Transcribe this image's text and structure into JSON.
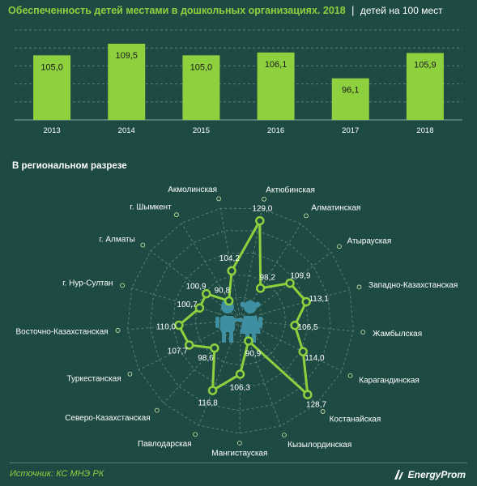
{
  "header": {
    "title": "Обеспеченность детей местами в дошкольных организациях. 2018",
    "separator": "|",
    "unit": "детей  на 100 мест"
  },
  "regional": {
    "heading": "В региональном  разрезе"
  },
  "footer": {
    "source": "Источник: КС МНЭ РК",
    "logo_text": "EnergyProm"
  },
  "colors": {
    "background": "#1e4a44",
    "accent": "#8ed13e",
    "grid": "#5b7f77"
  },
  "icons": {
    "center": "children-icon",
    "logo": "energyprom-logo-icon"
  },
  "chart_data": [
    {
      "type": "bar",
      "categories": [
        "2013",
        "2014",
        "2015",
        "2016",
        "2017",
        "2018"
      ],
      "values": [
        105.0,
        109.5,
        105.0,
        106.1,
        96.1,
        105.9
      ],
      "value_labels": [
        "105,0",
        "109,5",
        "105,0",
        "106,1",
        "96,1",
        "105,9"
      ],
      "grid": true
    },
    {
      "type": "radar",
      "categories": [
        "Актюбинская",
        "Алматинская",
        "Атырауская",
        "Западно-Казахстанская",
        "Жамбылская",
        "Карагандинская",
        "Костанайская",
        "Кызылординская",
        "Мангистауская",
        "Павлодарская",
        "Северо-Казахстанская",
        "Туркестанская",
        "Восточно-Казахстанская",
        "г. Нур-Султан",
        "г. Алматы",
        "г. Шымкент",
        "Акмолинская"
      ],
      "values": [
        129.0,
        98.2,
        109.9,
        113.1,
        106.5,
        114.0,
        128.7,
        90.9,
        106.3,
        116.8,
        98.6,
        107.7,
        110.0,
        100.7,
        100.9,
        90.8,
        104.2
      ],
      "value_labels": [
        "129,0",
        "98,2",
        "109,9",
        "113,1",
        "106,5",
        "114,0",
        "128,7",
        "90,9",
        "106,3",
        "116,8",
        "98,6",
        "107,7",
        "110,0",
        "100,7",
        "100,9",
        "90,8",
        "104,2"
      ],
      "grid": true
    }
  ]
}
